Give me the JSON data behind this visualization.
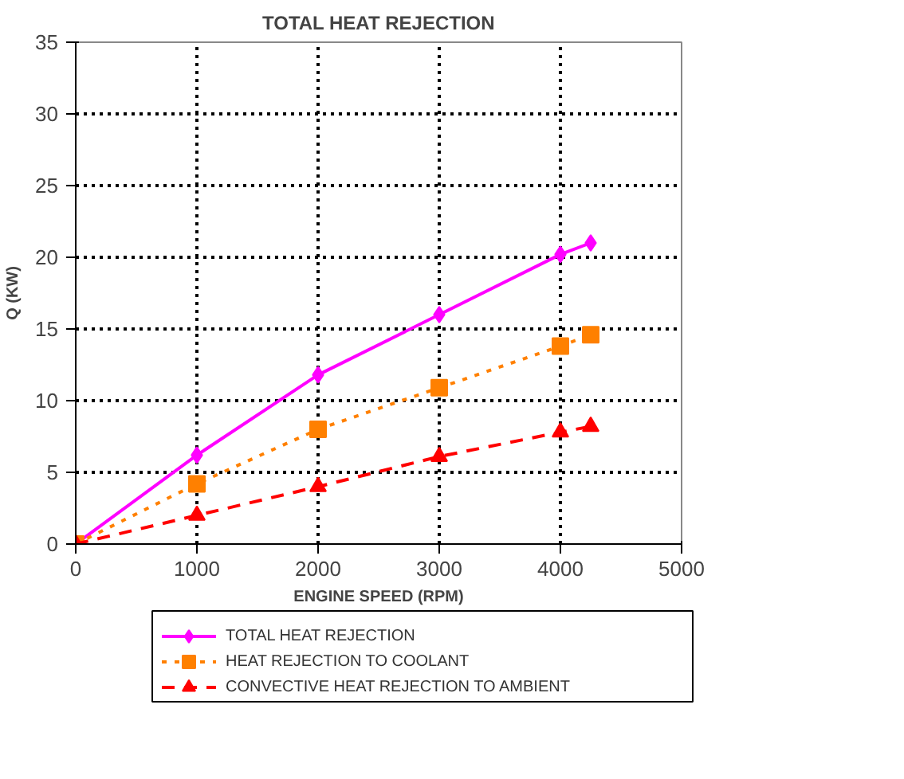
{
  "chart_data": {
    "type": "line",
    "title": "TOTAL HEAT REJECTION",
    "xlabel": "ENGINE SPEED (RPM)",
    "ylabel": "Q (KW)",
    "x": [
      0,
      1000,
      2000,
      3000,
      4000,
      4250
    ],
    "series": [
      {
        "name": "TOTAL HEAT REJECTION",
        "color": "#ff00ff",
        "marker": "diamond",
        "line_style": "solid",
        "values": [
          0,
          6.2,
          11.8,
          16,
          20.2,
          21
        ]
      },
      {
        "name": "HEAT REJECTION TO COOLANT",
        "color": "#ff8000",
        "marker": "square",
        "line_style": "dotted",
        "values": [
          0,
          4.2,
          8,
          10.9,
          13.8,
          14.6
        ]
      },
      {
        "name": "CONVECTIVE HEAT REJECTION TO AMBIENT",
        "color": "#ff0000",
        "marker": "triangle",
        "line_style": "dashed",
        "values": [
          0,
          2,
          4,
          6.1,
          7.8,
          8.2
        ]
      }
    ],
    "xlim": [
      0,
      5000
    ],
    "ylim": [
      0,
      35
    ],
    "xticks": [
      0,
      1000,
      2000,
      3000,
      4000,
      5000
    ],
    "yticks": [
      0,
      5,
      10,
      15,
      20,
      25,
      30,
      35
    ],
    "grid": true,
    "legend": "bottom"
  }
}
